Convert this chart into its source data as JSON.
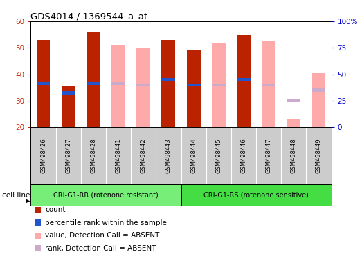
{
  "title": "GDS4014 / 1369544_a_at",
  "samples": [
    "GSM498426",
    "GSM498427",
    "GSM498428",
    "GSM498441",
    "GSM498442",
    "GSM498443",
    "GSM498444",
    "GSM498445",
    "GSM498446",
    "GSM498447",
    "GSM498448",
    "GSM498449"
  ],
  "group1_count": 6,
  "group2_count": 6,
  "group1_label": "CRI-G1-RR (rotenone resistant)",
  "group2_label": "CRI-G1-RS (rotenone sensitive)",
  "cell_line_label": "cell line",
  "count_values": [
    53,
    35.5,
    56,
    null,
    null,
    53,
    49,
    null,
    55,
    null,
    null,
    null
  ],
  "rank_values": [
    36.5,
    33,
    36.5,
    null,
    null,
    38,
    36,
    null,
    38,
    null,
    null,
    null
  ],
  "absent_value_values": [
    null,
    null,
    null,
    51,
    50,
    null,
    null,
    51.5,
    null,
    52.5,
    23,
    40.5
  ],
  "absent_rank_values": [
    null,
    null,
    null,
    36.5,
    36,
    null,
    null,
    36,
    null,
    36,
    30,
    34
  ],
  "count_color": "#bb2200",
  "rank_color": "#2255cc",
  "absent_value_color": "#ffaaaa",
  "absent_rank_color": "#ccaacc",
  "ylim_left": [
    20,
    60
  ],
  "ylim_right": [
    0,
    100
  ],
  "yticks_left": [
    20,
    30,
    40,
    50,
    60
  ],
  "yticks_right": [
    0,
    25,
    50,
    75,
    100
  ],
  "bg_color": "#ffffff",
  "plot_bg": "#ffffff",
  "tick_label_color_left": "#cc2200",
  "tick_label_color_right": "#0000cc",
  "group1_color": "#77ee77",
  "group2_color": "#44dd44",
  "xticklabel_bg": "#cccccc",
  "legend_items": [
    [
      "#bb2200",
      "count"
    ],
    [
      "#2255cc",
      "percentile rank within the sample"
    ],
    [
      "#ffaaaa",
      "value, Detection Call = ABSENT"
    ],
    [
      "#ccaacc",
      "rank, Detection Call = ABSENT"
    ]
  ]
}
